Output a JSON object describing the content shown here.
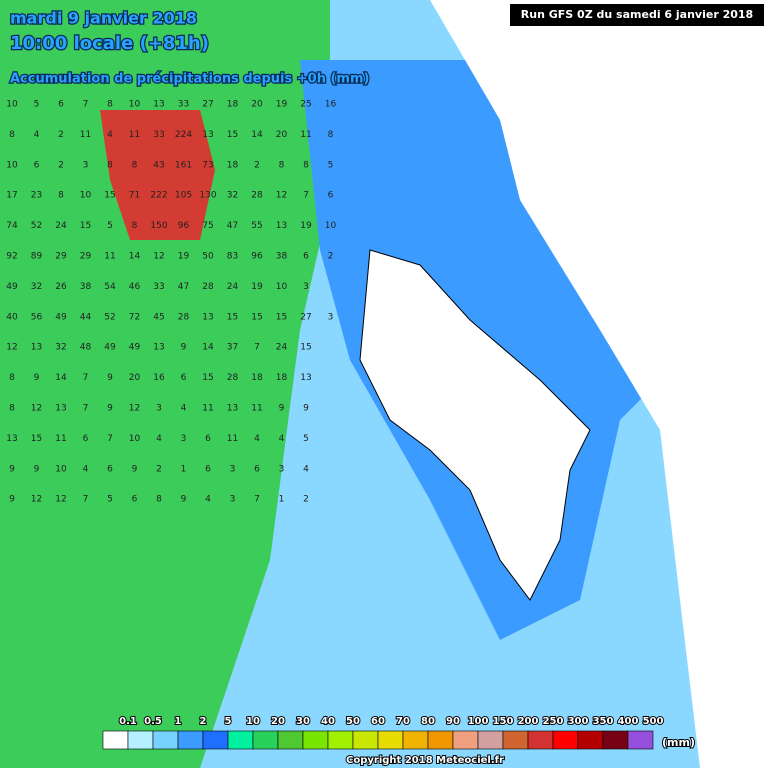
{
  "header": {
    "date": "mardi 9 janvier 2018",
    "time": "10:00 locale (+81h)",
    "subtitle": "Accumulation de précipitations depuis +0h (mm)",
    "run": "Run GFS 0Z du samedi 6 janvier 2018"
  },
  "grid": [
    [
      "10",
      "5",
      "6",
      "7",
      "8",
      "10",
      "13",
      "33",
      "27",
      "18",
      "20",
      "19",
      "25",
      "16"
    ],
    [
      "8",
      "4",
      "2",
      "11",
      "4",
      "11",
      "33",
      "224",
      "13",
      "15",
      "14",
      "20",
      "11",
      "8"
    ],
    [
      "10",
      "6",
      "2",
      "3",
      "8",
      "8",
      "43",
      "161",
      "73",
      "18",
      "2",
      "8",
      "8",
      "5"
    ],
    [
      "17",
      "23",
      "8",
      "10",
      "15",
      "71",
      "222",
      "105",
      "130",
      "32",
      "28",
      "12",
      "7",
      "6"
    ],
    [
      "74",
      "52",
      "24",
      "15",
      "5",
      "8",
      "150",
      "96",
      "75",
      "47",
      "55",
      "13",
      "19",
      "10"
    ],
    [
      "92",
      "89",
      "29",
      "29",
      "11",
      "14",
      "12",
      "19",
      "50",
      "83",
      "96",
      "38",
      "6",
      "2"
    ],
    [
      "49",
      "32",
      "26",
      "38",
      "54",
      "46",
      "33",
      "47",
      "28",
      "24",
      "19",
      "10",
      "3",
      null
    ],
    [
      "40",
      "56",
      "49",
      "44",
      "52",
      "72",
      "45",
      "28",
      "13",
      "15",
      "15",
      "15",
      "27",
      "3"
    ],
    [
      "12",
      "13",
      "32",
      "48",
      "49",
      "49",
      "13",
      "9",
      "14",
      "37",
      "7",
      "24",
      "15",
      null
    ],
    [
      "8",
      "9",
      "14",
      "7",
      "9",
      "20",
      "16",
      "6",
      "15",
      "28",
      "18",
      "18",
      "13",
      null
    ],
    [
      "8",
      "12",
      "13",
      "7",
      "9",
      "12",
      "3",
      "4",
      "11",
      "13",
      "11",
      "9",
      "9",
      null
    ],
    [
      "13",
      "15",
      "11",
      "6",
      "7",
      "10",
      "4",
      "3",
      "6",
      "11",
      "4",
      "4",
      "5",
      null
    ],
    [
      "9",
      "9",
      "10",
      "4",
      "6",
      "9",
      "2",
      "1",
      "6",
      "3",
      "6",
      "3",
      "4",
      null
    ],
    [
      "9",
      "12",
      "12",
      "7",
      "5",
      "6",
      "8",
      "9",
      "4",
      "3",
      "7",
      "1",
      "2",
      null
    ]
  ],
  "legend": {
    "labels": [
      "0.1",
      "0.5",
      "1",
      "2",
      "5",
      "10",
      "20",
      "30",
      "40",
      "50",
      "60",
      "70",
      "80",
      "90",
      "100",
      "150",
      "200",
      "250",
      "300",
      "350",
      "400",
      "500"
    ],
    "colors": [
      "#ffffff",
      "#b4f0ff",
      "#78d2ff",
      "#3c9bff",
      "#1e6eff",
      "#00f0a0",
      "#28d25a",
      "#50c832",
      "#78e600",
      "#a0f000",
      "#c8e600",
      "#e6dc00",
      "#f0b400",
      "#f09600",
      "#f0a080",
      "#d2a0a0",
      "#d26432",
      "#d23232",
      "#ff0000",
      "#b40000",
      "#780014",
      "#9650dc"
    ],
    "unit": "(mm)"
  },
  "footer": {
    "copyright": "Copyright 2018 Meteociel.fr"
  }
}
